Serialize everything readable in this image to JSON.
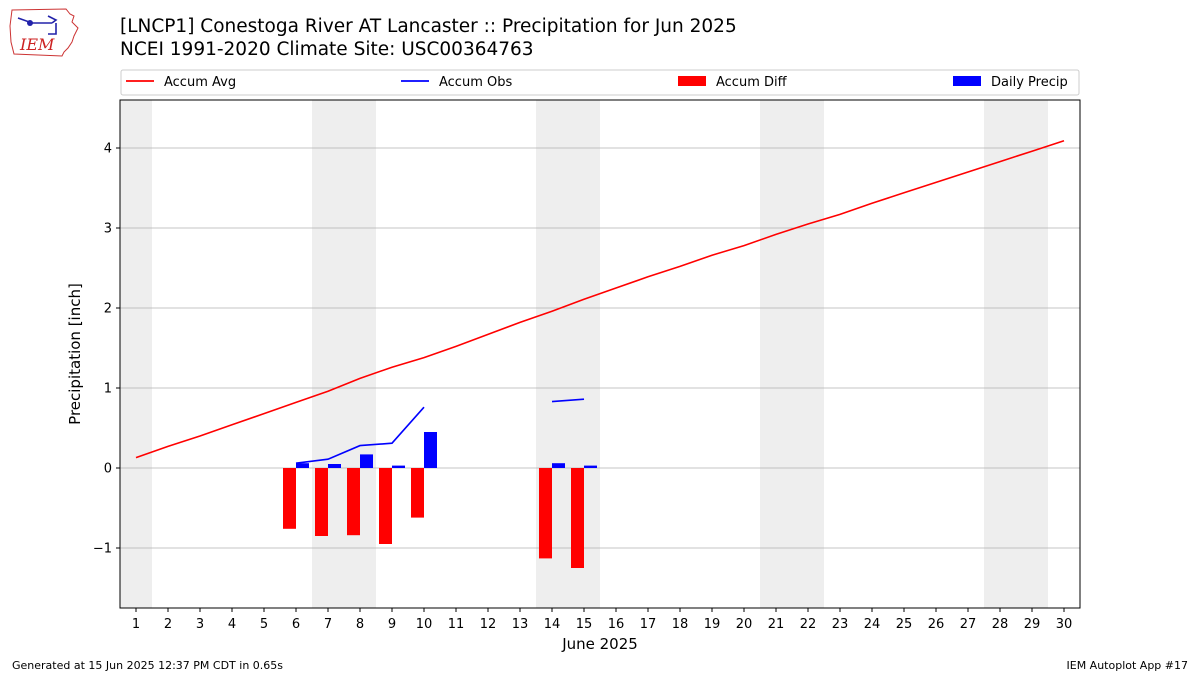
{
  "header": {
    "title_line1": "[LNCP1] Conestoga River  AT Lancaster :: Precipitation for Jun 2025",
    "title_line2": "NCEI 1991-2020 Climate Site: USC00364763"
  },
  "logo": {
    "text": "IEM",
    "icon": "iem-iowa-map-logo"
  },
  "footer": {
    "generated": "Generated at 15 Jun 2025 12:37 PM CDT in 0.65s",
    "app": "IEM Autoplot App #17"
  },
  "colors": {
    "accum_avg": "#ff0000",
    "accum_obs": "#0000ff",
    "accum_diff": "#ff0000",
    "daily_precip": "#0000ff",
    "weekend_band": "#eeeeee",
    "grid": "#b0b0b0"
  },
  "chart_data": {
    "type": "bar",
    "xlabel": "June 2025",
    "ylabel": "Precipitation [inch]",
    "x": [
      1,
      2,
      3,
      4,
      5,
      6,
      7,
      8,
      9,
      10,
      11,
      12,
      13,
      14,
      15,
      16,
      17,
      18,
      19,
      20,
      21,
      22,
      23,
      24,
      25,
      26,
      27,
      28,
      29,
      30
    ],
    "xlim": [
      0.5,
      30.5
    ],
    "ylim": [
      -1.75,
      4.6
    ],
    "yticks": [
      -1,
      0,
      1,
      2,
      3,
      4
    ],
    "ytick_labels": [
      "−1",
      "0",
      "1",
      "2",
      "3",
      "4"
    ],
    "grid": "horizontal",
    "legend_position": "top",
    "legend": [
      "Accum Avg",
      "Accum Obs",
      "Accum Diff",
      "Daily Precip"
    ],
    "shaded_days": [
      [
        0.5,
        1.5
      ],
      [
        6.5,
        8.5
      ],
      [
        13.5,
        15.5
      ],
      [
        20.5,
        22.5
      ],
      [
        27.5,
        29.5
      ]
    ],
    "series": [
      {
        "name": "Accum Avg",
        "type": "line",
        "color": "#ff0000",
        "x": [
          1,
          2,
          3,
          4,
          5,
          6,
          7,
          8,
          9,
          10,
          11,
          12,
          13,
          14,
          15,
          16,
          17,
          18,
          19,
          20,
          21,
          22,
          23,
          24,
          25,
          26,
          27,
          28,
          29,
          30
        ],
        "values": [
          0.13,
          0.27,
          0.4,
          0.54,
          0.68,
          0.82,
          0.96,
          1.12,
          1.26,
          1.38,
          1.52,
          1.67,
          1.82,
          1.96,
          2.11,
          2.25,
          2.39,
          2.52,
          2.66,
          2.78,
          2.92,
          3.05,
          3.17,
          3.31,
          3.44,
          3.57,
          3.7,
          3.83,
          3.96,
          4.09
        ]
      },
      {
        "name": "Accum Obs",
        "type": "line",
        "color": "#0000ff",
        "segments": [
          {
            "x": [
              6,
              7,
              8,
              9,
              10
            ],
            "values": [
              0.06,
              0.11,
              0.28,
              0.31,
              0.76
            ]
          },
          {
            "x": [
              14,
              15
            ],
            "values": [
              0.83,
              0.86
            ]
          }
        ]
      },
      {
        "name": "Accum Diff",
        "type": "bar",
        "color": "#ff0000",
        "x": [
          6,
          7,
          8,
          9,
          10,
          14,
          15
        ],
        "values": [
          -0.76,
          -0.85,
          -0.84,
          -0.95,
          -0.62,
          -1.13,
          -1.25
        ]
      },
      {
        "name": "Daily Precip",
        "type": "bar",
        "color": "#0000ff",
        "x": [
          6,
          7,
          8,
          9,
          10,
          14,
          15
        ],
        "values": [
          0.06,
          0.05,
          0.17,
          0.03,
          0.45,
          0.06,
          0.03
        ]
      }
    ]
  }
}
